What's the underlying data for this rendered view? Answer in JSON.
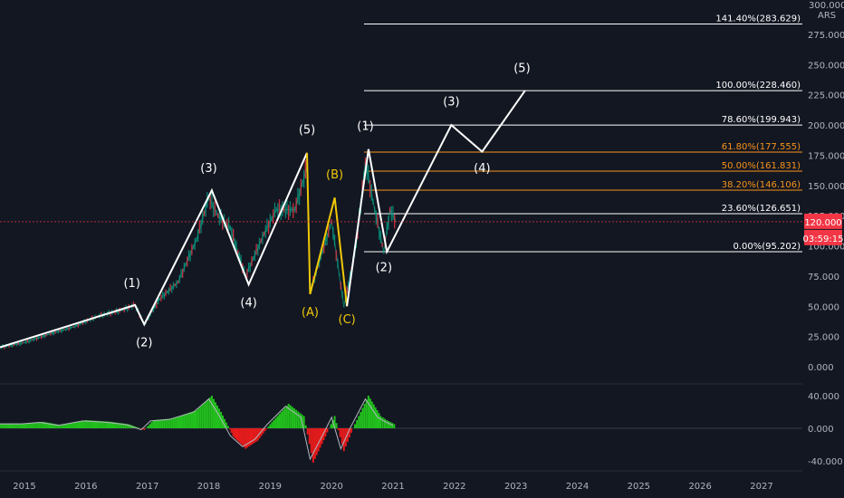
{
  "chart_data": {
    "type": "line",
    "currency": "ARS",
    "price": {
      "ylim": [
        0,
        300
      ],
      "ticks": [
        0,
        25,
        50,
        75,
        100,
        125,
        150,
        175,
        200,
        225,
        250,
        275
      ],
      "tick_labels": [
        "0.000",
        "25.000",
        "50.000",
        "75.000",
        "100.000",
        "125.000",
        "150.000",
        "175.000",
        "200.000",
        "225.000",
        "250.000",
        "275.000"
      ],
      "top_label": "300.000",
      "grid": false
    },
    "x_axis": {
      "tick_years": [
        2015,
        2016,
        2017,
        2018,
        2019,
        2020,
        2021,
        2022,
        2023,
        2024,
        2025,
        2026,
        2027
      ],
      "tick_labels": [
        "2015",
        "2016",
        "2017",
        "2018",
        "2019",
        "2020",
        "2021",
        "2022",
        "2023",
        "2024",
        "2025",
        "2026",
        "2027"
      ]
    },
    "current_price": {
      "value": 120.0,
      "label": "120.000",
      "color": "#f23645"
    },
    "countdown": {
      "label": "03:59:15",
      "color": "#f23645"
    },
    "price_series": [
      {
        "x": 2014.6,
        "y": 16
      },
      {
        "x": 2015.0,
        "y": 20
      },
      {
        "x": 2015.4,
        "y": 27
      },
      {
        "x": 2015.8,
        "y": 33
      },
      {
        "x": 2016.2,
        "y": 42
      },
      {
        "x": 2016.6,
        "y": 47
      },
      {
        "x": 2016.8,
        "y": 51
      },
      {
        "x": 2016.95,
        "y": 35
      },
      {
        "x": 2017.2,
        "y": 56
      },
      {
        "x": 2017.5,
        "y": 70
      },
      {
        "x": 2017.8,
        "y": 105
      },
      {
        "x": 2018.0,
        "y": 140
      },
      {
        "x": 2018.15,
        "y": 125
      },
      {
        "x": 2018.35,
        "y": 115
      },
      {
        "x": 2018.6,
        "y": 75
      },
      {
        "x": 2018.9,
        "y": 110
      },
      {
        "x": 2019.1,
        "y": 130
      },
      {
        "x": 2019.4,
        "y": 130
      },
      {
        "x": 2019.6,
        "y": 165
      },
      {
        "x": 2019.65,
        "y": 62
      },
      {
        "x": 2019.85,
        "y": 95
      },
      {
        "x": 2020.0,
        "y": 120
      },
      {
        "x": 2020.2,
        "y": 50
      },
      {
        "x": 2020.4,
        "y": 100
      },
      {
        "x": 2020.55,
        "y": 170
      },
      {
        "x": 2020.7,
        "y": 130
      },
      {
        "x": 2020.85,
        "y": 95
      },
      {
        "x": 2020.95,
        "y": 130
      },
      {
        "x": 2021.05,
        "y": 120
      }
    ],
    "waves": [
      {
        "color": "#ffffff",
        "points": [
          {
            "x": 2014.6,
            "y": 16
          },
          {
            "x": 2016.8,
            "y": 51
          },
          {
            "x": 2016.95,
            "y": 35
          },
          {
            "x": 2018.05,
            "y": 146
          },
          {
            "x": 2018.65,
            "y": 68
          },
          {
            "x": 2019.6,
            "y": 177
          }
        ]
      },
      {
        "color": "#f0c808",
        "points": [
          {
            "x": 2019.6,
            "y": 177
          },
          {
            "x": 2019.65,
            "y": 60
          },
          {
            "x": 2020.05,
            "y": 140
          },
          {
            "x": 2020.25,
            "y": 50
          }
        ]
      },
      {
        "color": "#ffffff",
        "points": [
          {
            "x": 2020.25,
            "y": 50
          },
          {
            "x": 2020.6,
            "y": 180
          },
          {
            "x": 2020.9,
            "y": 95.2
          },
          {
            "x": 2021.95,
            "y": 200
          },
          {
            "x": 2022.45,
            "y": 178
          },
          {
            "x": 2023.15,
            "y": 228.5
          }
        ]
      }
    ],
    "wave_labels": [
      {
        "text": "(1)",
        "x": 2016.75,
        "y": 66,
        "color": "#ffffff"
      },
      {
        "text": "(2)",
        "x": 2016.95,
        "y": 17,
        "color": "#ffffff"
      },
      {
        "text": "(3)",
        "x": 2018.0,
        "y": 161,
        "color": "#ffffff"
      },
      {
        "text": "(4)",
        "x": 2018.65,
        "y": 50,
        "color": "#ffffff"
      },
      {
        "text": "(5)",
        "x": 2019.6,
        "y": 193,
        "color": "#ffffff"
      },
      {
        "text": "(A)",
        "x": 2019.65,
        "y": 42,
        "color": "#f0c808"
      },
      {
        "text": "(B)",
        "x": 2020.05,
        "y": 156,
        "color": "#f0c808"
      },
      {
        "text": "(C)",
        "x": 2020.25,
        "y": 36,
        "color": "#f0c808"
      },
      {
        "text": "(1)",
        "x": 2020.55,
        "y": 196,
        "color": "#ffffff"
      },
      {
        "text": "(2)",
        "x": 2020.85,
        "y": 79,
        "color": "#ffffff"
      },
      {
        "text": "(3)",
        "x": 2021.95,
        "y": 216,
        "color": "#ffffff"
      },
      {
        "text": "(4)",
        "x": 2022.45,
        "y": 161,
        "color": "#ffffff"
      },
      {
        "text": "(5)",
        "x": 2023.1,
        "y": 244,
        "color": "#ffffff"
      }
    ],
    "fibonacci": [
      {
        "label": "141.40%(283.629)",
        "value": 283.629,
        "color": "#ffffff"
      },
      {
        "label": "100.00%(228.460)",
        "value": 228.46,
        "color": "#ffffff"
      },
      {
        "label": "78.60%(199.943)",
        "value": 199.943,
        "color": "#ffffff"
      },
      {
        "label": "61.80%(177.555)",
        "value": 177.555,
        "color": "#f7931a"
      },
      {
        "label": "50.00%(161.831)",
        "value": 161.831,
        "color": "#f7931a"
      },
      {
        "label": "38.20%(146.106)",
        "value": 146.106,
        "color": "#f7931a"
      },
      {
        "label": "23.60%(126.651)",
        "value": 126.651,
        "color": "#ffffff"
      },
      {
        "label": "0.00%(95.202)",
        "value": 95.202,
        "color": "#ffffff"
      }
    ],
    "oscillator": {
      "ylim": [
        -45,
        45
      ],
      "ticks": [
        40,
        0,
        -40
      ],
      "tick_labels": [
        "40.000",
        "0.000",
        "-40.000"
      ],
      "positive_color": "#22c11d",
      "negative_color": "#e81b1b",
      "points": [
        {
          "x": 2014.6,
          "y": 6
        },
        {
          "x": 2015.0,
          "y": 6
        },
        {
          "x": 2015.3,
          "y": 8
        },
        {
          "x": 2015.6,
          "y": 4
        },
        {
          "x": 2016.0,
          "y": 10
        },
        {
          "x": 2016.4,
          "y": 8
        },
        {
          "x": 2016.7,
          "y": 5
        },
        {
          "x": 2016.95,
          "y": -2
        },
        {
          "x": 2017.1,
          "y": 10
        },
        {
          "x": 2017.4,
          "y": 12
        },
        {
          "x": 2017.8,
          "y": 22
        },
        {
          "x": 2018.05,
          "y": 40
        },
        {
          "x": 2018.2,
          "y": 20
        },
        {
          "x": 2018.4,
          "y": -10
        },
        {
          "x": 2018.6,
          "y": -25
        },
        {
          "x": 2018.8,
          "y": -15
        },
        {
          "x": 2019.0,
          "y": 5
        },
        {
          "x": 2019.3,
          "y": 30
        },
        {
          "x": 2019.55,
          "y": 15
        },
        {
          "x": 2019.7,
          "y": -42
        },
        {
          "x": 2019.9,
          "y": -10
        },
        {
          "x": 2020.05,
          "y": 15
        },
        {
          "x": 2020.2,
          "y": -28
        },
        {
          "x": 2020.35,
          "y": 0
        },
        {
          "x": 2020.6,
          "y": 40
        },
        {
          "x": 2020.8,
          "y": 15
        },
        {
          "x": 2020.9,
          "y": 10
        },
        {
          "x": 2021.05,
          "y": 4
        }
      ]
    }
  }
}
